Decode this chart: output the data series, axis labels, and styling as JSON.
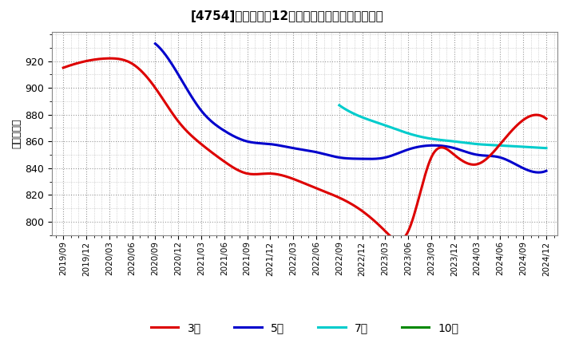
{
  "title": "[4754]　経常利益12か月移動合計の平均値の推移",
  "ylabel": "（百万円）",
  "background_color": "#ffffff",
  "plot_bg_color": "#ffffff",
  "grid_color": "#999999",
  "ylim": [
    790,
    942
  ],
  "yticks": [
    800,
    820,
    840,
    860,
    880,
    900,
    920
  ],
  "x_labels": [
    "2019/09",
    "2019/12",
    "2020/03",
    "2020/06",
    "2020/09",
    "2020/12",
    "2021/03",
    "2021/06",
    "2021/09",
    "2021/12",
    "2022/03",
    "2022/06",
    "2022/09",
    "2022/12",
    "2023/03",
    "2023/06",
    "2023/09",
    "2023/12",
    "2024/03",
    "2024/06",
    "2024/09",
    "2024/12"
  ],
  "series_3yr": {
    "label": "3年",
    "color": "#dd0000",
    "linewidth": 2.2,
    "x_indices": [
      0,
      1,
      2,
      3,
      4,
      5,
      6,
      7,
      8,
      9,
      10,
      11,
      12,
      13,
      14,
      15,
      16,
      17,
      18,
      19,
      20,
      21
    ],
    "values": [
      915,
      920,
      922,
      918,
      900,
      875,
      858,
      845,
      836,
      836,
      832,
      825,
      818,
      808,
      793,
      793,
      848,
      850,
      843,
      858,
      876,
      877
    ]
  },
  "series_5yr": {
    "label": "5年",
    "color": "#0000cc",
    "linewidth": 2.2,
    "x_indices": [
      4,
      5,
      6,
      7,
      8,
      9,
      10,
      11,
      12,
      13,
      14,
      15,
      16,
      17,
      18,
      19,
      20,
      21
    ],
    "values": [
      933,
      910,
      883,
      868,
      860,
      858,
      855,
      852,
      848,
      847,
      848,
      854,
      857,
      855,
      850,
      848,
      840,
      838
    ]
  },
  "series_7yr": {
    "label": "7年",
    "color": "#00cccc",
    "linewidth": 2.2,
    "x_indices": [
      12,
      13,
      14,
      15,
      16,
      17,
      18,
      19,
      20,
      21
    ],
    "values": [
      887,
      878,
      872,
      866,
      862,
      860,
      858,
      857,
      856,
      855
    ]
  },
  "series_10yr": {
    "label": "10年",
    "color": "#008800",
    "linewidth": 2.2,
    "x_indices": [],
    "values": []
  },
  "legend_entries": [
    "3年",
    "5年",
    "7年",
    "10年"
  ],
  "legend_colors": [
    "#dd0000",
    "#0000cc",
    "#00cccc",
    "#008800"
  ]
}
